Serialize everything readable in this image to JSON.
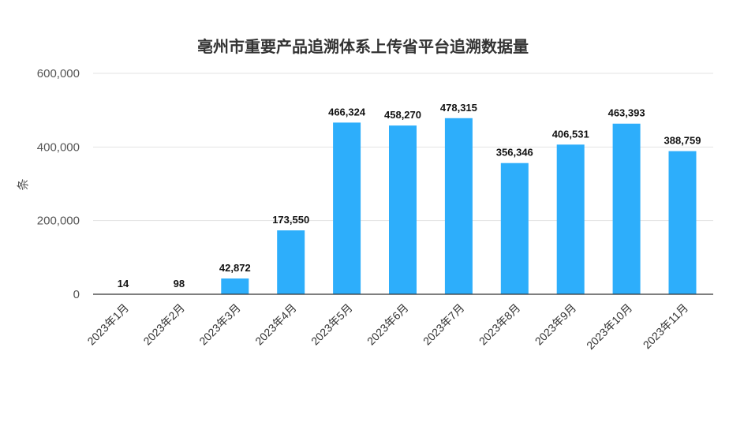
{
  "chart_data": {
    "type": "bar",
    "title": "亳州市重要产品追溯体系上传省平台追溯数据量",
    "ylabel": "条",
    "xlabel": "",
    "categories": [
      "2023年1月",
      "2023年2月",
      "2023年3月",
      "2023年4月",
      "2023年5月",
      "2023年6月",
      "2023年7月",
      "2023年8月",
      "2023年9月",
      "2023年10月",
      "2023年11月"
    ],
    "values": [
      14,
      98,
      42872,
      173550,
      466324,
      458270,
      478315,
      356346,
      406531,
      463393,
      388759
    ],
    "data_labels": [
      "14",
      "98",
      "42,872",
      "173,550",
      "466,324",
      "458,270",
      "478,315",
      "356,346",
      "406,531",
      "463,393",
      "388,759"
    ],
    "ylim": [
      0,
      600000
    ],
    "yticks": [
      0,
      200000,
      400000,
      600000
    ],
    "ytick_labels": [
      "0",
      "200,000",
      "400,000",
      "600,000"
    ],
    "grid": true,
    "bar_color": "#2DAEFB"
  }
}
